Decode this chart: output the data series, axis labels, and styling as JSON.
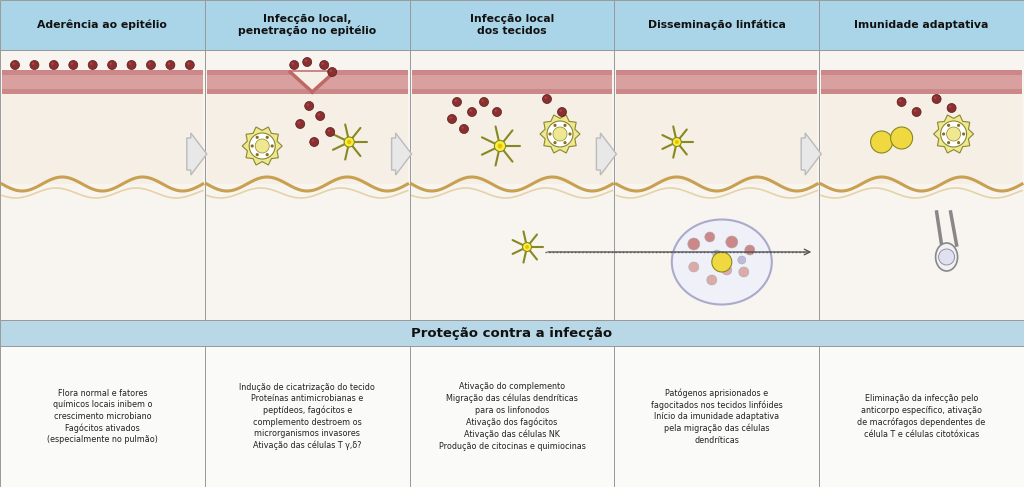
{
  "header_bg_color": "#aad4e8",
  "illus_bg_color": "#f5f5f0",
  "tissue_color": "#f0ebe0",
  "tissue_below_color": "#f5f0e8",
  "epi_outer_color": "#cc8888",
  "epi_inner_color": "#d9a0a0",
  "wavy_color": "#c8a050",
  "lower_banner_bg": "#b8d8e8",
  "desc_bg_color": "#fafaf8",
  "border_color": "#999999",
  "arrow_fill": "#e8e8e8",
  "arrow_edge": "#bbbbbb",
  "bact_color": "#8b3030",
  "bact_edge": "#5a1a1a",
  "macrophage_fill": "#f0e890",
  "macrophage_edge": "#888830",
  "macrophage_inner": "#ffffff",
  "macrophage_dot": "#8b7020",
  "dendritic_color": "#e8d820",
  "dendritic_edge": "#888820",
  "dendritic_center": "#f8f040",
  "lymph_fill": "#f0f0f8",
  "lymph_edge": "#aaaacc",
  "lymph_dot": "#cc8888",
  "lymph_center": "#f0d040",
  "yellow_cell_color": "#f0d840",
  "yellow_cell_edge": "#888820",
  "col_headers": [
    "Aderência ao epitélio",
    "Infecção local,\npenetração no epitélio",
    "Infecção local\ndos tecidos",
    "Disseminação linfática",
    "Imunidade adaptativa"
  ],
  "protection_title": "Proteção contra a infecção",
  "col_descriptions": [
    "Flora normal e fatores\nquímicos locais inibem o\ncrescimento microbiano\nFagócitos ativados\n(especialmente no pulmão)",
    "Indução de cicatrização do tecido\nProteínas antimicrobianas e\npeptídeos, fagócitos e\ncomplemento destroem os\nmicrorganismos invasores\nAtivação das células T γ,δ?",
    "Ativação do complemento\nMigração das células dendríticas\npara os linfonodos\nAtivação dos fagócitos\nAtivação das células NK\nProdução de citocinas e quimiocinas",
    "Patógenos aprisionados e\nfagocitados nos tecidos linfóides\nInício da imunidade adaptativa\npela migração das células\ndendríticas",
    "Eliminação da infecção pelo\nanticorpo específico, ativação\nde macrófagos dependentes de\ncélula T e células citotóxicas"
  ],
  "fig_width": 10.24,
  "fig_height": 4.87,
  "dpi": 100
}
